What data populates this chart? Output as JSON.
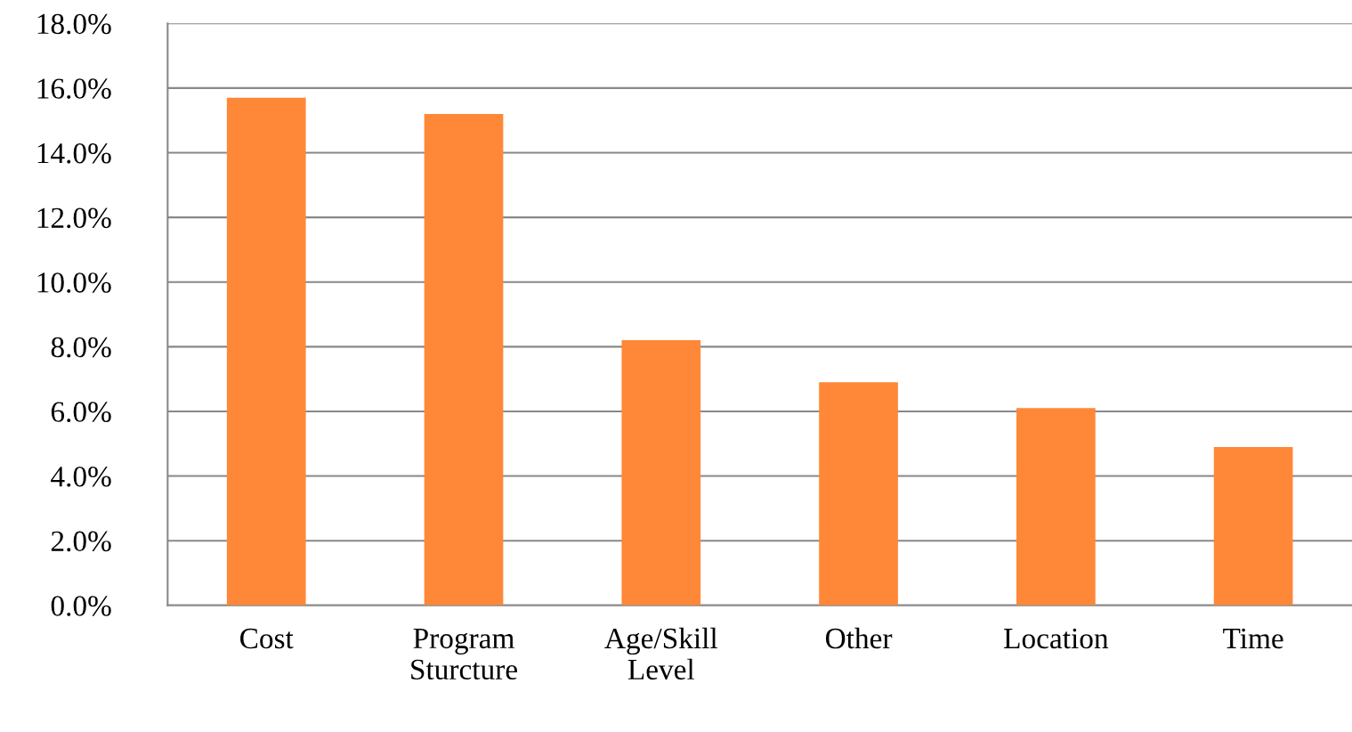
{
  "chart_data": {
    "type": "bar",
    "categories": [
      "Cost",
      "Program\nSturcture",
      "Age/Skill\nLevel",
      "Other",
      "Location",
      "Time"
    ],
    "values": [
      15.7,
      15.2,
      8.2,
      6.9,
      6.1,
      4.9
    ],
    "color": "#fe8838",
    "ylim": [
      0,
      18
    ],
    "yticks": [
      {
        "value": 0,
        "label": "0.0%"
      },
      {
        "value": 2,
        "label": "2.0%"
      },
      {
        "value": 4,
        "label": "4.0%"
      },
      {
        "value": 6,
        "label": "6.0%"
      },
      {
        "value": 8,
        "label": "8.0%"
      },
      {
        "value": 10,
        "label": "10.0%"
      },
      {
        "value": 12,
        "label": "12.0%"
      },
      {
        "value": 14,
        "label": "14.0%"
      },
      {
        "value": 16,
        "label": "16.0%"
      },
      {
        "value": 18,
        "label": "18.0%"
      }
    ],
    "grid": "y",
    "legend": false
  }
}
